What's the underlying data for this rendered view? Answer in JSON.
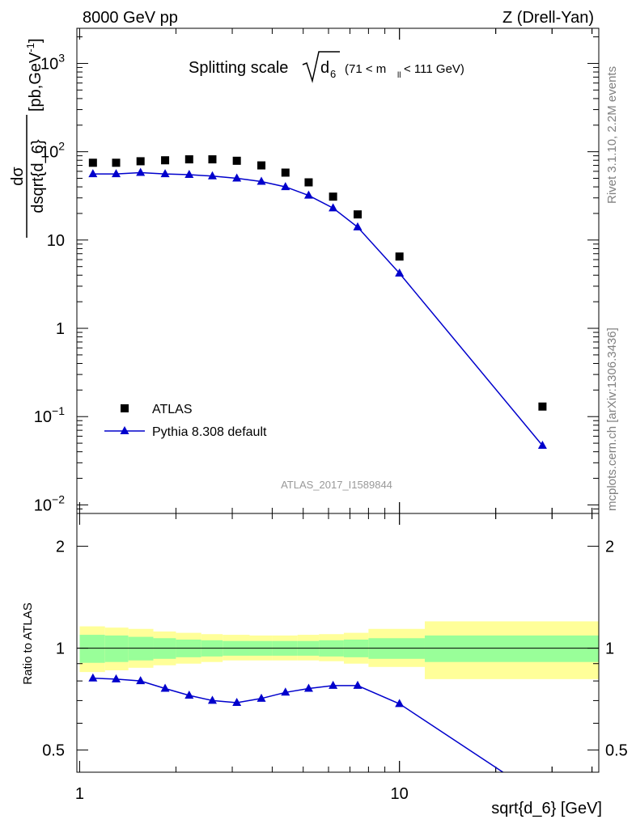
{
  "header": {
    "left": "8000 GeV pp",
    "right": "Z (Drell-Yan)"
  },
  "title": {
    "main": "Splitting scale",
    "sqrt_sym": "d",
    "sqrt_sub": "6",
    "range_pre": "(71 < m",
    "range_sub": "ll",
    "range_post": " < 111 GeV)"
  },
  "side_labels": {
    "rivet": "Rivet 3.1.10,  2.2M events",
    "mcplots": "mcplots.cern.ch [arXiv:1306.3436]"
  },
  "watermark": "ATLAS_2017_I1589844",
  "legend": {
    "data_label": "ATLAS",
    "mc_label": "Pythia 8.308 default",
    "position": "lower-left"
  },
  "colors": {
    "data": "#000000",
    "mc": "#0000cc",
    "band_inner": "#99ff99",
    "band_outer": "#ffff99"
  },
  "chart_data": [
    {
      "type": "scatter",
      "panel": "main",
      "xscale": "log",
      "yscale": "log",
      "xlim": [
        0.98,
        42
      ],
      "ylim": [
        0.008,
        2500
      ],
      "ylabel_num": "dσ",
      "ylabel_den": "dsqrt{d_6}",
      "ylabel_unit_pre": "[pb,GeV",
      "ylabel_unit_sup": "-1",
      "ylabel_unit_post": "]",
      "yticks": [
        {
          "v": 1000,
          "base": "10",
          "exp": "3"
        },
        {
          "v": 100,
          "base": "10",
          "exp": "2"
        },
        {
          "v": 10,
          "base": "10",
          "exp": ""
        },
        {
          "v": 1,
          "base": "1",
          "exp": ""
        },
        {
          "v": 0.1,
          "base": "10",
          "exp": "−1"
        },
        {
          "v": 0.01,
          "base": "10",
          "exp": "−2"
        }
      ],
      "series": [
        {
          "name": "ATLAS",
          "marker": "square",
          "x": [
            1.1,
            1.3,
            1.55,
            1.85,
            2.2,
            2.6,
            3.1,
            3.7,
            4.4,
            5.2,
            6.2,
            7.4,
            10.0,
            28.0
          ],
          "y": [
            75,
            75,
            78,
            80,
            82,
            82,
            79,
            70,
            58,
            45,
            31,
            19.5,
            6.5,
            0.13
          ]
        },
        {
          "name": "Pythia 8.308 default",
          "marker": "triangle",
          "x": [
            1.1,
            1.3,
            1.55,
            1.85,
            2.2,
            2.6,
            3.1,
            3.7,
            4.4,
            5.2,
            6.2,
            7.4,
            10.0,
            28.0
          ],
          "y": [
            56,
            56,
            58,
            56,
            55,
            53,
            50,
            46,
            40,
            32,
            23,
            14,
            4.2,
            0.047
          ]
        }
      ]
    },
    {
      "type": "line",
      "panel": "ratio",
      "xscale": "log",
      "yscale": "log",
      "xlim": [
        0.98,
        42
      ],
      "ylim": [
        0.43,
        2.5
      ],
      "xlabel": "sqrt{d_6} [GeV]",
      "ylabel": "Ratio to ATLAS",
      "xticks": [
        {
          "v": 1,
          "label": "1"
        },
        {
          "v": 10,
          "label": "10"
        }
      ],
      "yticks": [
        {
          "v": 2,
          "label": "2"
        },
        {
          "v": 1,
          "label": "1"
        },
        {
          "v": 0.5,
          "label": "0.5"
        }
      ],
      "reference": 1.0,
      "bands": {
        "edges": [
          1.0,
          1.2,
          1.42,
          1.7,
          2.0,
          2.4,
          2.8,
          3.4,
          4.0,
          4.8,
          5.6,
          6.7,
          8.0,
          12.0,
          42.0
        ],
        "inner_lo": [
          0.905,
          0.91,
          0.92,
          0.93,
          0.94,
          0.945,
          0.95,
          0.95,
          0.95,
          0.95,
          0.945,
          0.94,
          0.93,
          0.91
        ],
        "inner_hi": [
          1.095,
          1.09,
          1.08,
          1.07,
          1.06,
          1.055,
          1.05,
          1.05,
          1.05,
          1.05,
          1.055,
          1.06,
          1.07,
          1.09
        ],
        "outer_lo": [
          0.85,
          0.86,
          0.875,
          0.89,
          0.9,
          0.91,
          0.92,
          0.92,
          0.92,
          0.92,
          0.915,
          0.9,
          0.88,
          0.81
        ],
        "outer_hi": [
          1.16,
          1.15,
          1.14,
          1.12,
          1.11,
          1.1,
          1.095,
          1.09,
          1.09,
          1.095,
          1.1,
          1.11,
          1.14,
          1.2
        ]
      },
      "series": [
        {
          "name": "Pythia 8.308 default",
          "marker": "triangle",
          "x": [
            1.1,
            1.3,
            1.55,
            1.85,
            2.2,
            2.6,
            3.1,
            3.7,
            4.4,
            5.2,
            6.2,
            7.4,
            10.0,
            28.0
          ],
          "y": [
            0.815,
            0.81,
            0.8,
            0.76,
            0.725,
            0.7,
            0.69,
            0.71,
            0.74,
            0.76,
            0.775,
            0.775,
            0.685,
            0.36
          ]
        }
      ]
    }
  ]
}
